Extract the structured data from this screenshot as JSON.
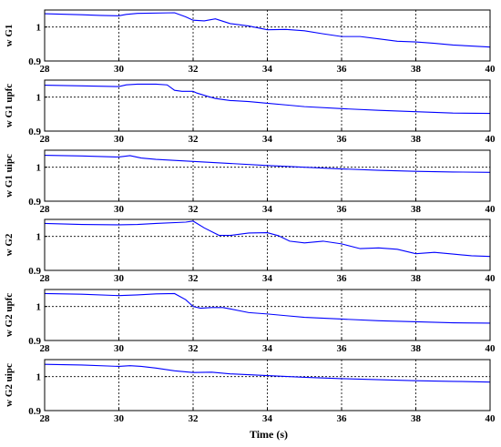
{
  "figure": {
    "xlabel": "Time (s)",
    "line_color": "#0000ff"
  },
  "chart_data": [
    {
      "type": "line",
      "ylabel": "w G1",
      "xlim": [
        28,
        40
      ],
      "ylim": [
        0.9,
        1.05
      ],
      "xticks": [
        "28",
        "30",
        "32",
        "34",
        "36",
        "38",
        "40"
      ],
      "yticks": [
        "0.9",
        "1"
      ],
      "grid": "dashed",
      "x": [
        28,
        29,
        29.5,
        30,
        30.2,
        30.5,
        31.5,
        31.8,
        32,
        32.3,
        32.6,
        32.8,
        33,
        33.5,
        34,
        34.5,
        35,
        35.5,
        36,
        36.5,
        37,
        37.5,
        38,
        38.5,
        39,
        39.5,
        40
      ],
      "y": [
        1.039,
        1.036,
        1.034,
        1.033,
        1.037,
        1.04,
        1.042,
        1.03,
        1.02,
        1.018,
        1.024,
        1.017,
        1.01,
        1.003,
        0.992,
        0.993,
        0.989,
        0.98,
        0.972,
        0.972,
        0.965,
        0.958,
        0.956,
        0.952,
        0.947,
        0.944,
        0.941
      ]
    },
    {
      "type": "line",
      "ylabel": "w G1 upfc",
      "xlim": [
        28,
        40
      ],
      "ylim": [
        0.9,
        1.05
      ],
      "xticks": [
        "28",
        "30",
        "32",
        "34",
        "36",
        "38",
        "40"
      ],
      "yticks": [
        "0.9",
        "1"
      ],
      "grid": "dashed",
      "x": [
        28,
        29,
        30,
        30.2,
        30.5,
        31,
        31.3,
        31.5,
        31.7,
        32,
        32.1,
        32.4,
        32.6,
        33,
        33.5,
        34,
        34.5,
        35,
        36,
        37,
        38,
        39,
        40
      ],
      "y": [
        1.035,
        1.033,
        1.031,
        1.036,
        1.038,
        1.038,
        1.036,
        1.02,
        1.017,
        1.017,
        1.012,
        1.002,
        0.996,
        0.99,
        0.987,
        0.982,
        0.977,
        0.972,
        0.966,
        0.961,
        0.957,
        0.953,
        0.952
      ]
    },
    {
      "type": "line",
      "ylabel": "w G1 uipc",
      "xlim": [
        28,
        40
      ],
      "ylim": [
        0.9,
        1.05
      ],
      "xticks": [
        "28",
        "30",
        "32",
        "34",
        "36",
        "38",
        "40"
      ],
      "yticks": [
        "0.9",
        "1"
      ],
      "grid": "dashed",
      "x": [
        28,
        29,
        30,
        30.3,
        30.6,
        31,
        32,
        33,
        34,
        35,
        36,
        37,
        38,
        39,
        40
      ],
      "y": [
        1.035,
        1.033,
        1.03,
        1.034,
        1.027,
        1.023,
        1.017,
        1.011,
        1.005,
        1.0,
        0.995,
        0.991,
        0.988,
        0.986,
        0.985
      ]
    },
    {
      "type": "line",
      "ylabel": "w G2",
      "xlim": [
        28,
        40
      ],
      "ylim": [
        0.9,
        1.05
      ],
      "xticks": [
        "28",
        "30",
        "32",
        "34",
        "36",
        "38",
        "40"
      ],
      "yticks": [
        "0.9",
        "1"
      ],
      "grid": "dashed",
      "x": [
        28,
        29,
        30,
        30.5,
        31,
        31.8,
        32,
        32.3,
        32.7,
        33,
        33.5,
        34,
        34.3,
        34.6,
        35,
        35.5,
        36,
        36.5,
        37,
        37.5,
        38,
        38.5,
        39,
        39.5,
        40
      ],
      "y": [
        1.038,
        1.035,
        1.034,
        1.035,
        1.038,
        1.042,
        1.045,
        1.025,
        1.003,
        1.003,
        1.01,
        1.011,
        1.002,
        0.986,
        0.981,
        0.986,
        0.978,
        0.964,
        0.966,
        0.962,
        0.949,
        0.953,
        0.948,
        0.943,
        0.941
      ]
    },
    {
      "type": "line",
      "ylabel": "w G2 upfc",
      "xlim": [
        28,
        40
      ],
      "ylim": [
        0.9,
        1.05
      ],
      "xticks": [
        "28",
        "30",
        "32",
        "34",
        "36",
        "38",
        "40"
      ],
      "yticks": [
        "0.9",
        "1"
      ],
      "grid": "dashed",
      "x": [
        28,
        29,
        30,
        30.5,
        31,
        31.5,
        31.8,
        32,
        32.2,
        32.5,
        32.8,
        33,
        33.5,
        34,
        34.5,
        35,
        36,
        37,
        38,
        39,
        40
      ],
      "y": [
        1.038,
        1.036,
        1.032,
        1.034,
        1.037,
        1.038,
        1.02,
        1.0,
        0.995,
        0.997,
        0.997,
        0.993,
        0.982,
        0.978,
        0.973,
        0.968,
        0.963,
        0.958,
        0.955,
        0.952,
        0.951
      ]
    },
    {
      "type": "line",
      "ylabel": "w G2 uipc",
      "xlim": [
        28,
        40
      ],
      "ylim": [
        0.9,
        1.05
      ],
      "xticks": [
        "28",
        "30",
        "32",
        "34",
        "36",
        "38",
        "40"
      ],
      "yticks": [
        "0.9",
        "1"
      ],
      "grid": "dashed",
      "x": [
        28,
        29,
        30,
        30.3,
        30.6,
        31,
        31.5,
        32,
        32.5,
        33,
        34,
        35,
        36,
        37,
        38,
        39,
        40
      ],
      "y": [
        1.036,
        1.034,
        1.03,
        1.032,
        1.03,
        1.025,
        1.017,
        1.012,
        1.013,
        1.008,
        1.003,
        0.998,
        0.994,
        0.991,
        0.988,
        0.986,
        0.984
      ]
    }
  ]
}
